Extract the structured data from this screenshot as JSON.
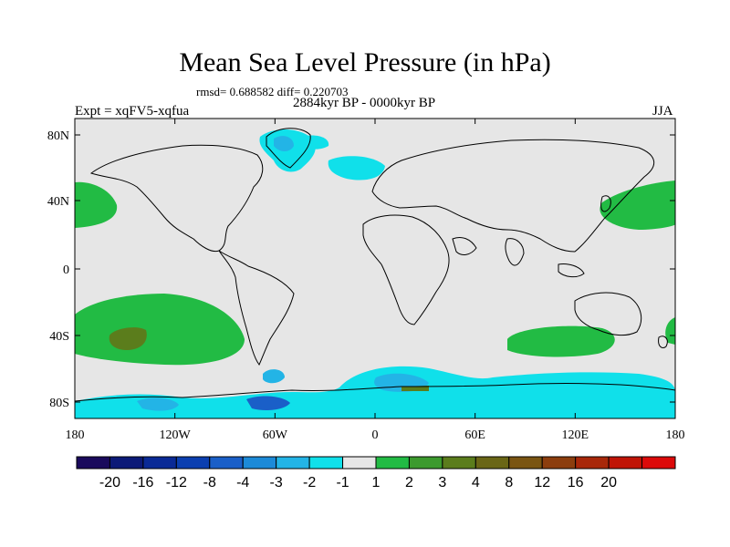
{
  "title": "Mean Sea Level Pressure (in hPa)",
  "stats": "rmsd= 0.688582 diff= 0.220703",
  "period": "2884kyr BP - 0000kyr BP",
  "experiment": "Expt = xqFV5-xqfua",
  "season": "JJA",
  "lat_labels": [
    "80N",
    "40N",
    "0",
    "40S",
    "80S"
  ],
  "lon_labels": [
    "180",
    "120W",
    "60W",
    "0",
    "60E",
    "120E",
    "180"
  ],
  "colorbar": {
    "colors": [
      "#1a0a5c",
      "#0c1a78",
      "#0a2a96",
      "#0b3fb0",
      "#1a5fc8",
      "#1c8ad8",
      "#23b4e6",
      "#10e0ea",
      "#e6e6e6",
      "#22bb44",
      "#3c9a2e",
      "#5b7d1c",
      "#6a6616",
      "#7a5512",
      "#8c3e0e",
      "#a8280a",
      "#c01406",
      "#dc0a0a"
    ],
    "labels": [
      "-20",
      "-16",
      "-12",
      "-8",
      "-4",
      "-3",
      "-2",
      "-1",
      "1",
      "2",
      "3",
      "4",
      "8",
      "12",
      "16",
      "20"
    ]
  },
  "regions": [
    {
      "name": "north-pacific-east-high",
      "color": "#22bb44"
    },
    {
      "name": "north-pacific-west-high",
      "color": "#22bb44"
    },
    {
      "name": "south-pacific-high",
      "color": "#22bb44"
    },
    {
      "name": "south-pacific-core",
      "color": "#5b7d1c"
    },
    {
      "name": "south-indian-high",
      "color": "#22bb44"
    },
    {
      "name": "greenland-low",
      "color": "#10e0ea"
    },
    {
      "name": "antarctic-low",
      "color": "#23b4e6"
    }
  ]
}
